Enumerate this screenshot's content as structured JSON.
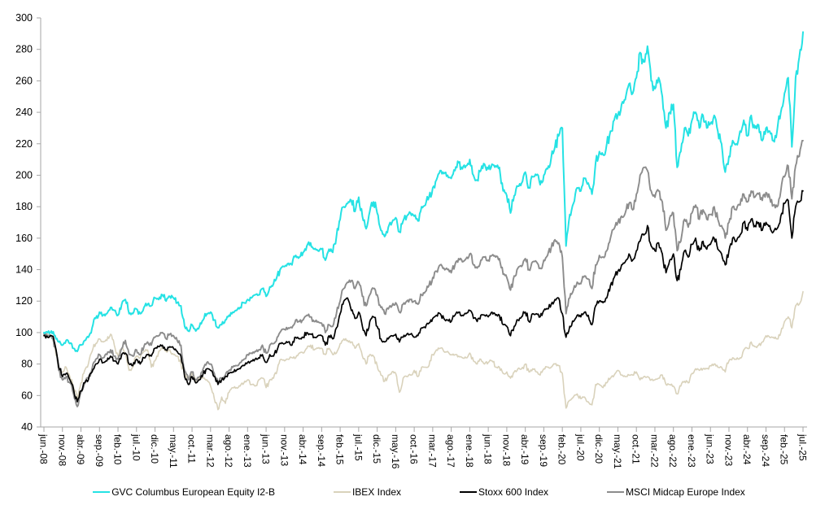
{
  "chart_data": {
    "type": "line",
    "title": "",
    "background": "#ffffff",
    "grid": false,
    "axis_color": "#a6a6a6",
    "label_color": "#000000",
    "y_axis": {
      "min": 40,
      "max": 300,
      "tick_step": 20,
      "ticks": [
        300,
        280,
        260,
        240,
        220,
        200,
        180,
        160,
        140,
        120,
        100,
        80,
        60,
        40
      ]
    },
    "x_axis": {
      "start_month": "2008-06",
      "months_total": 206,
      "tick_interval_months": 5,
      "tick_labels": [
        "jun.-08",
        "nov.-08",
        "abr.-09",
        "sep.-09",
        "feb.-10",
        "jul.-10",
        "dic.-10",
        "may.-11",
        "oct.-11",
        "mar.-12",
        "ago.-12",
        "ene.-13",
        "jun.-13",
        "nov.-13",
        "abr.-14",
        "sep.-14",
        "feb.-15",
        "jul.-15",
        "dic.-15",
        "may.-16",
        "oct.-16",
        "mar.-17",
        "ago.-17",
        "ene.-18",
        "jun.-18",
        "nov.-18",
        "abr.-19",
        "sep.-19",
        "feb.-20",
        "jul.-20",
        "dic.-20",
        "may.-21",
        "oct.-21",
        "mar.-22",
        "ago.-22",
        "ene.-23",
        "jun.-23",
        "nov.-23",
        "abr.-24",
        "sep.-24",
        "feb.-25",
        "jul.-25"
      ]
    },
    "legend_position": "bottom",
    "draw_order": [
      1,
      3,
      2,
      0
    ],
    "series": [
      {
        "name": "GVC Columbus European Equity I2-B",
        "color": "#25e2e4",
        "stroke_width": 2.0,
        "values": [
          100,
          100,
          101,
          98,
          94,
          92,
          95,
          93,
          90,
          88,
          92,
          95,
          97,
          103,
          109,
          113,
          111,
          112,
          116,
          114,
          111,
          118,
          121,
          112,
          112,
          115,
          112,
          116,
          118,
          117,
          122,
          121,
          124,
          120,
          123,
          122,
          119,
          117,
          104,
          101,
          105,
          101,
          104,
          108,
          112,
          113,
          108,
          103,
          105,
          108,
          111,
          113,
          114,
          116,
          119,
          121,
          122,
          124,
          124,
          128,
          123,
          129,
          131,
          136,
          141,
          142,
          144,
          143,
          149,
          148,
          151,
          155,
          157,
          153,
          152,
          153,
          146,
          153,
          151,
          161,
          172,
          180,
          182,
          184,
          177,
          186,
          174,
          166,
          177,
          183,
          176,
          165,
          161,
          167,
          170,
          173,
          164,
          171,
          174,
          176,
          174,
          171,
          180,
          181,
          186,
          192,
          197,
          203,
          201,
          200,
          198,
          203,
          208,
          204,
          206,
          210,
          200,
          197,
          203,
          207,
          204,
          207,
          206,
          205,
          190,
          187,
          176,
          187,
          193,
          195,
          202,
          192,
          199,
          200,
          194,
          200,
          204,
          211,
          218,
          225,
          230,
          155,
          175,
          182,
          192,
          190,
          198,
          195,
          188,
          208,
          215,
          213,
          220,
          228,
          235,
          238,
          245,
          248,
          258,
          252,
          262,
          278,
          272,
          282,
          260,
          255,
          262,
          250,
          230,
          240,
          245,
          205,
          215,
          230,
          225,
          235,
          240,
          230,
          238,
          230,
          233,
          238,
          228,
          220,
          202,
          212,
          222,
          220,
          228,
          235,
          225,
          238,
          230,
          232,
          222,
          230,
          228,
          222,
          228,
          240,
          252,
          262,
          218,
          262,
          275,
          291
        ]
      },
      {
        "name": "IBEX Index",
        "color": "#d9d2bb",
        "stroke_width": 1.6,
        "values": [
          100,
          99,
          97,
          90,
          78,
          75,
          78,
          72,
          65,
          58,
          68,
          76,
          80,
          88,
          93,
          96,
          94,
          95,
          99,
          92,
          85,
          90,
          87,
          76,
          78,
          85,
          84,
          88,
          89,
          78,
          82,
          88,
          90,
          88,
          89,
          86,
          85,
          80,
          73,
          71,
          74,
          69,
          71,
          71,
          70,
          66,
          58,
          51,
          59,
          55,
          62,
          65,
          65,
          66,
          68,
          70,
          67,
          66,
          70,
          71,
          65,
          70,
          71,
          76,
          83,
          82,
          83,
          84,
          84,
          87,
          87,
          90,
          92,
          89,
          90,
          90,
          86,
          90,
          86,
          87,
          93,
          96,
          95,
          94,
          90,
          93,
          85,
          80,
          86,
          85,
          79,
          73,
          69,
          73,
          75,
          74,
          62,
          71,
          72,
          73,
          76,
          72,
          78,
          78,
          79,
          86,
          89,
          90,
          88,
          88,
          86,
          86,
          85,
          84,
          84,
          87,
          82,
          80,
          83,
          80,
          81,
          82,
          78,
          78,
          74,
          75,
          71,
          75,
          77,
          77,
          80,
          75,
          77,
          75,
          73,
          77,
          78,
          78,
          80,
          79,
          74,
          52,
          57,
          59,
          61,
          58,
          59,
          56,
          54,
          67,
          67,
          65,
          68,
          71,
          73,
          76,
          73,
          72,
          73,
          73,
          75,
          70,
          72,
          72,
          70,
          70,
          71,
          73,
          67,
          67,
          66,
          61,
          66,
          69,
          68,
          74,
          77,
          76,
          77,
          77,
          79,
          80,
          78,
          78,
          75,
          82,
          84,
          83,
          84,
          89,
          90,
          94,
          91,
          92,
          94,
          98,
          97,
          97,
          96,
          100,
          107,
          110,
          103,
          117,
          118,
          126
        ]
      },
      {
        "name": "Stoxx 600 Index",
        "color": "#000000",
        "stroke_width": 1.7,
        "values": [
          98,
          97,
          98,
          92,
          78,
          72,
          74,
          70,
          64,
          56,
          63,
          68,
          70,
          75,
          80,
          83,
          81,
          82,
          85,
          82,
          80,
          86,
          87,
          80,
          79,
          83,
          80,
          84,
          86,
          85,
          90,
          91,
          92,
          89,
          91,
          90,
          88,
          85,
          72,
          67,
          72,
          68,
          70,
          74,
          77,
          76,
          72,
          67,
          70,
          72,
          74,
          75,
          76,
          77,
          79,
          81,
          82,
          83,
          84,
          86,
          81,
          86,
          85,
          89,
          93,
          93,
          94,
          92,
          97,
          96,
          97,
          100,
          99,
          97,
          98,
          98,
          92,
          98,
          96,
          103,
          112,
          120,
          122,
          114,
          109,
          113,
          104,
          98,
          107,
          110,
          104,
          96,
          94,
          96,
          98,
          99,
          94,
          97,
          99,
          99,
          97,
          98,
          103,
          103,
          106,
          109,
          111,
          112,
          109,
          108,
          107,
          111,
          113,
          111,
          112,
          114,
          109,
          107,
          111,
          111,
          110,
          113,
          111,
          111,
          105,
          104,
          98,
          104,
          108,
          110,
          113,
          107,
          112,
          112,
          110,
          114,
          115,
          118,
          121,
          122,
          112,
          97,
          104,
          107,
          111,
          110,
          113,
          111,
          105,
          117,
          120,
          119,
          122,
          130,
          135,
          139,
          143,
          145,
          150,
          146,
          152,
          158,
          162,
          168,
          155,
          152,
          157,
          150,
          138,
          146,
          150,
          133,
          140,
          152,
          148,
          156,
          160,
          152,
          158,
          153,
          156,
          160,
          153,
          150,
          143,
          152,
          160,
          158,
          162,
          170,
          165,
          172,
          168,
          170,
          165,
          170,
          168,
          164,
          166,
          174,
          182,
          184,
          160,
          180,
          183,
          190
        ]
      },
      {
        "name": "MSCI Midcap Europe Index",
        "color": "#8c8c8c",
        "stroke_width": 1.9,
        "values": [
          99,
          98,
          98,
          91,
          76,
          70,
          72,
          68,
          61,
          53,
          62,
          68,
          71,
          77,
          83,
          86,
          84,
          86,
          89,
          85,
          83,
          90,
          95,
          86,
          85,
          89,
          86,
          91,
          94,
          92,
          97,
          98,
          100,
          96,
          99,
          98,
          95,
          92,
          76,
          70,
          75,
          70,
          72,
          77,
          81,
          80,
          74,
          68,
          71,
          73,
          76,
          78,
          79,
          81,
          83,
          86,
          87,
          88,
          89,
          92,
          87,
          92,
          93,
          97,
          101,
          102,
          103,
          103,
          108,
          107,
          108,
          111,
          110,
          107,
          107,
          106,
          100,
          105,
          104,
          112,
          120,
          128,
          132,
          133,
          128,
          132,
          123,
          117,
          124,
          128,
          124,
          116,
          112,
          115,
          117,
          119,
          113,
          118,
          120,
          121,
          120,
          118,
          124,
          126,
          130,
          135,
          139,
          143,
          141,
          140,
          138,
          143,
          147,
          145,
          147,
          150,
          143,
          141,
          146,
          148,
          146,
          149,
          148,
          147,
          137,
          135,
          127,
          136,
          141,
          142,
          147,
          140,
          145,
          145,
          141,
          146,
          149,
          154,
          159,
          157,
          148,
          112,
          122,
          127,
          132,
          131,
          136,
          134,
          128,
          143,
          149,
          148,
          152,
          160,
          166,
          170,
          174,
          176,
          182,
          178,
          188,
          200,
          205,
          203,
          190,
          186,
          190,
          183,
          165,
          173,
          176,
          152,
          158,
          172,
          167,
          176,
          181,
          172,
          178,
          172,
          175,
          180,
          172,
          168,
          160,
          170,
          180,
          178,
          181,
          188,
          183,
          190,
          186,
          188,
          184,
          189,
          186,
          181,
          180,
          190,
          199,
          206,
          185,
          206,
          212,
          222
        ]
      }
    ]
  }
}
